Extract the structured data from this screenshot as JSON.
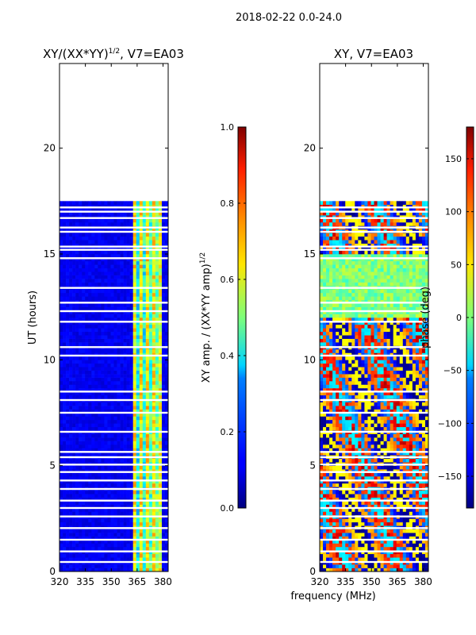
{
  "figure_title": "2018-02-22 0.0-24.0",
  "shared_xlabel": "frequency (MHz)",
  "chart_data": [
    {
      "type": "heatmap",
      "title": "XY/(XX*YY)",
      "title_suffix": ", V7=EA03",
      "title_exponent": "1/2",
      "xlabel": "",
      "ylabel": "UT (hours)",
      "xlim": [
        320,
        383
      ],
      "ylim": [
        0,
        24
      ],
      "xticks": [
        320,
        335,
        350,
        365,
        380
      ],
      "yticks": [
        0,
        5,
        10,
        15,
        20
      ],
      "data_extent_hours": [
        0,
        17.5
      ],
      "colorbar": {
        "label": "XY amp. / (XX*YY amp)",
        "label_exponent": "1/2",
        "range": [
          0.0,
          1.0
        ],
        "ticks": [
          "0.0",
          "0.2",
          "0.4",
          "0.6",
          "0.8",
          "1.0"
        ],
        "tick_values": [
          0,
          0.2,
          0.4,
          0.6,
          0.8,
          1.0
        ],
        "colormap": "jet"
      }
    },
    {
      "type": "heatmap",
      "title": "XY, V7=EA03",
      "xlabel": "",
      "ylabel": "",
      "xlim": [
        320,
        383
      ],
      "ylim": [
        0,
        24
      ],
      "xticks": [
        320,
        335,
        350,
        365,
        380
      ],
      "yticks": [
        0,
        5,
        10,
        15,
        20
      ],
      "data_extent_hours": [
        0,
        17.5
      ],
      "colorbar": {
        "label": "phase (deg)",
        "range": [
          -180,
          180
        ],
        "ticks": [
          "150",
          "100",
          "50",
          "0",
          "−50",
          "−100",
          "−150"
        ],
        "tick_values": [
          150,
          100,
          50,
          0,
          -50,
          -100,
          -150
        ],
        "colormap": "jet"
      }
    }
  ]
}
